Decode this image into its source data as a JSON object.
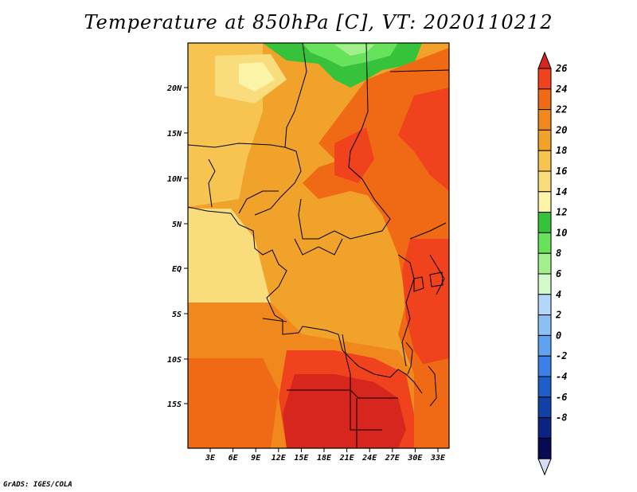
{
  "title": "Temperature at 850hPa [C], VT: 2020110212",
  "credit": "GrADS: IGES/COLA",
  "lat_labels": [
    "20N",
    "15N",
    "10N",
    "5N",
    "EQ",
    "5S",
    "10S",
    "15S"
  ],
  "lon_labels": [
    "3E",
    "6E",
    "9E",
    "12E",
    "15E",
    "18E",
    "21E",
    "24E",
    "27E",
    "30E",
    "33E"
  ],
  "colorbar": {
    "labels": [
      "26",
      "24",
      "22",
      "20",
      "18",
      "16",
      "14",
      "12",
      "10",
      "8",
      "6",
      "4",
      "2",
      "0",
      "-2",
      "-4",
      "-6",
      "-8"
    ],
    "colors": [
      "#d7261e",
      "#f0421c",
      "#f06a16",
      "#f0881e",
      "#f0a22a",
      "#f7c452",
      "#f9dd7d",
      "#fcf5a8",
      "#37c23b",
      "#67e25b",
      "#a1f08b",
      "#d4f9cb",
      "#b4d7f9",
      "#8cc0f5",
      "#5fa2ef",
      "#3b80e6",
      "#1f5ec9",
      "#1140a6",
      "#0c2382",
      "#080a54",
      "#d6dcf4"
    ]
  },
  "map_colors": {
    "c26": "#d7261e",
    "c24": "#f0421c",
    "c22": "#f06a16",
    "c20": "#f0881e",
    "c18": "#f0a22a",
    "c16": "#f7c452",
    "c14": "#f9dd7d",
    "c12": "#37c23b",
    "c10": "#67e25b",
    "c8": "#a1f08b"
  }
}
